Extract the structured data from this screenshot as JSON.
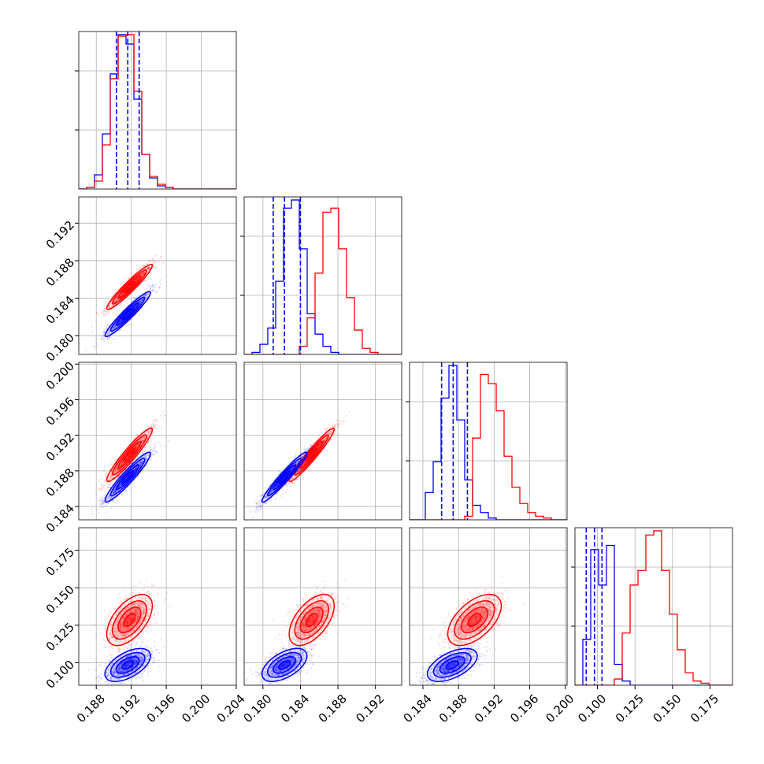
{
  "chart_data": {
    "type": "corner",
    "title": "",
    "grid": true,
    "legend": "none",
    "colors": {
      "series_a": "#ff0000",
      "series_b": "#0000ff",
      "quantile_lines": "#0000ff"
    },
    "parameters": [
      {
        "range": [
          0.186,
          0.204
        ],
        "ticks": [
          "0.188",
          "0.192",
          "0.196",
          "0.200",
          "0.204"
        ],
        "xtick_values": [
          0.188,
          0.192,
          0.196,
          0.2,
          0.204
        ]
      },
      {
        "range": [
          0.178,
          0.1948
        ],
        "ticks": [
          "0.180",
          "0.184",
          "0.188",
          "0.192"
        ],
        "xtick_values": [
          0.18,
          0.184,
          0.188,
          0.192
        ]
      },
      {
        "range": [
          0.1825,
          0.2002
        ],
        "ticks": [
          "0.184",
          "0.188",
          "0.192",
          "0.196",
          "0.200"
        ],
        "xtick_values": [
          0.184,
          0.188,
          0.192,
          0.196,
          0.2
        ]
      },
      {
        "range": [
          0.085,
          0.19
        ],
        "ticks": [
          "0.100",
          "0.125",
          "0.150",
          "0.175"
        ],
        "xtick_values": [
          0.1,
          0.125,
          0.15,
          0.175
        ]
      }
    ],
    "row_tick_labels": [
      [],
      [
        "0.180",
        "0.184",
        "0.188",
        "0.192"
      ],
      [
        "0.184",
        "0.188",
        "0.192",
        "0.196",
        "0.200"
      ],
      [
        "0.100",
        "0.125",
        "0.150",
        "0.175"
      ]
    ],
    "bottom_tick_labels": [
      [
        "0.188",
        "0.192",
        "0.196",
        "0.200",
        "0.204"
      ],
      [
        "0.180",
        "0.184",
        "0.188",
        "0.192"
      ],
      [
        "0.184",
        "0.188",
        "0.192",
        "0.196",
        "0.200"
      ],
      [
        "0.100",
        "0.125",
        "0.150",
        "0.175"
      ]
    ],
    "series": [
      {
        "color": "#ff0000",
        "means": [
          0.1918,
          0.1852,
          0.1898,
          0.1285
        ],
        "sigmas": [
          0.0013,
          0.0012,
          0.0015,
          0.0085
        ],
        "correlations": [
          [
            1,
            0.95,
            0.94,
            0.55
          ],
          [
            0.95,
            1,
            0.96,
            0.55
          ],
          [
            0.94,
            0.96,
            1,
            0.55
          ],
          [
            0.55,
            0.55,
            0.55,
            1
          ]
        ]
      },
      {
        "color": "#0000ff",
        "means": [
          0.1916,
          0.1823,
          0.1873,
          0.0985
        ],
        "sigmas": [
          0.0013,
          0.0012,
          0.0014,
          0.0055
        ],
        "correlations": [
          [
            1,
            0.95,
            0.94,
            0.55
          ],
          [
            0.95,
            1,
            0.96,
            0.55
          ],
          [
            0.94,
            0.96,
            1,
            0.55
          ],
          [
            0.55,
            0.55,
            0.55,
            1
          ]
        ]
      }
    ],
    "histograms": [
      {
        "param": 0,
        "bin_start": 0.186,
        "bin_width": 0.0009,
        "series_a": [
          0,
          1,
          5,
          28,
          70,
          97,
          98,
          62,
          22,
          8,
          3,
          1,
          0,
          0,
          0,
          0,
          0,
          0,
          0,
          0
        ],
        "series_b": [
          0,
          1,
          9,
          35,
          73,
          98,
          92,
          57,
          22,
          7,
          2,
          1,
          0,
          0,
          0,
          0,
          0,
          0,
          0,
          0
        ]
      },
      {
        "param": 1,
        "bin_start": 0.178,
        "bin_width": 0.00084,
        "series_a": [
          0,
          0,
          0,
          0,
          0,
          0,
          0,
          4,
          18,
          40,
          70,
          72,
          52,
          28,
          12,
          3,
          1,
          0,
          0,
          0
        ],
        "series_b": [
          0,
          1,
          5,
          13,
          36,
          72,
          76,
          52,
          20,
          10,
          4,
          1,
          0,
          0,
          0,
          0,
          0,
          0,
          0,
          0
        ]
      },
      {
        "param": 2,
        "bin_start": 0.1825,
        "bin_width": 0.000885,
        "series_a": [
          0,
          0,
          0,
          0,
          0,
          0,
          0,
          2,
          45,
          80,
          75,
          60,
          35,
          18,
          9,
          4,
          2,
          1,
          0,
          0
        ],
        "series_b": [
          0,
          0,
          15,
          32,
          67,
          85,
          55,
          22,
          8,
          4,
          1,
          0,
          0,
          0,
          0,
          0,
          0,
          0,
          0,
          0
        ]
      },
      {
        "param": 3,
        "bin_start": 0.085,
        "bin_width": 0.00525,
        "series_a": [
          0,
          0,
          0,
          0,
          0,
          3,
          25,
          48,
          55,
          72,
          74,
          55,
          34,
          17,
          6,
          2,
          1,
          0,
          0,
          0
        ],
        "series_b": [
          0,
          22,
          65,
          48,
          67,
          10,
          2,
          0,
          0,
          0,
          0,
          0,
          0,
          0,
          0,
          0,
          0,
          0,
          0,
          0
        ]
      }
    ],
    "quantiles": [
      [
        0.1903,
        0.1916,
        0.1929
      ],
      [
        0.1811,
        0.1823,
        0.184
      ],
      [
        0.1861,
        0.1874,
        0.189
      ],
      [
        0.0925,
        0.098,
        0.103
      ]
    ]
  }
}
